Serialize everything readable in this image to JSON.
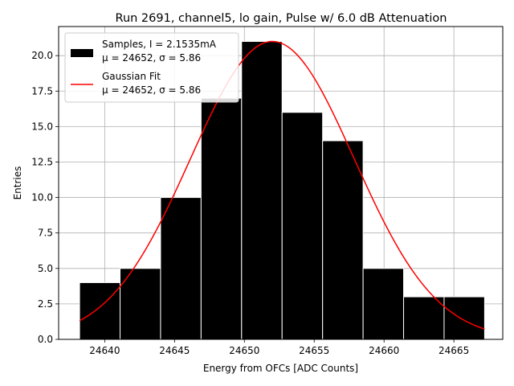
{
  "chart_data": {
    "type": "bar",
    "title": "Run 2691, channel5, lo gain, Pulse w/ 6.0 dB Attenuation",
    "xlabel": "Energy from OFCs [ADC Counts]",
    "ylabel": "Entries",
    "xlim": [
      24636.7,
      24668.5
    ],
    "ylim": [
      0,
      22.05
    ],
    "xticks": [
      24640,
      24645,
      24650,
      24655,
      24660,
      24665
    ],
    "yticks": [
      0.0,
      2.5,
      5.0,
      7.5,
      10.0,
      12.5,
      15.0,
      17.5,
      20.0
    ],
    "xtick_labels": [
      "24640",
      "24645",
      "24650",
      "24655",
      "24660",
      "24665"
    ],
    "ytick_labels": [
      "0.0",
      "2.5",
      "5.0",
      "7.5",
      "10.0",
      "12.5",
      "15.0",
      "17.5",
      "20.0"
    ],
    "grid": true,
    "legend_position": "top-left",
    "histogram": {
      "bin_edges": [
        24638.2,
        24641.1,
        24644.0,
        24646.9,
        24649.8,
        24652.7,
        24655.6,
        24658.5,
        24661.4,
        24664.3,
        24667.2
      ],
      "counts": [
        4,
        5,
        10,
        17,
        21,
        16,
        14,
        5,
        3,
        3
      ],
      "color": "#000000",
      "edge_color": "#ffffff"
    },
    "fit": {
      "mu": 24652,
      "sigma": 5.86,
      "amplitude": 21,
      "x_range": [
        24638.2,
        24667.2
      ],
      "color": "#ff0000"
    },
    "legend": [
      {
        "kind": "patch",
        "line1": "Samples, I = 2.1535mA",
        "line2": "μ = 24652, σ = 5.86"
      },
      {
        "kind": "line",
        "line1": "Gaussian Fit",
        "line2": "μ = 24652, σ = 5.86"
      }
    ]
  }
}
